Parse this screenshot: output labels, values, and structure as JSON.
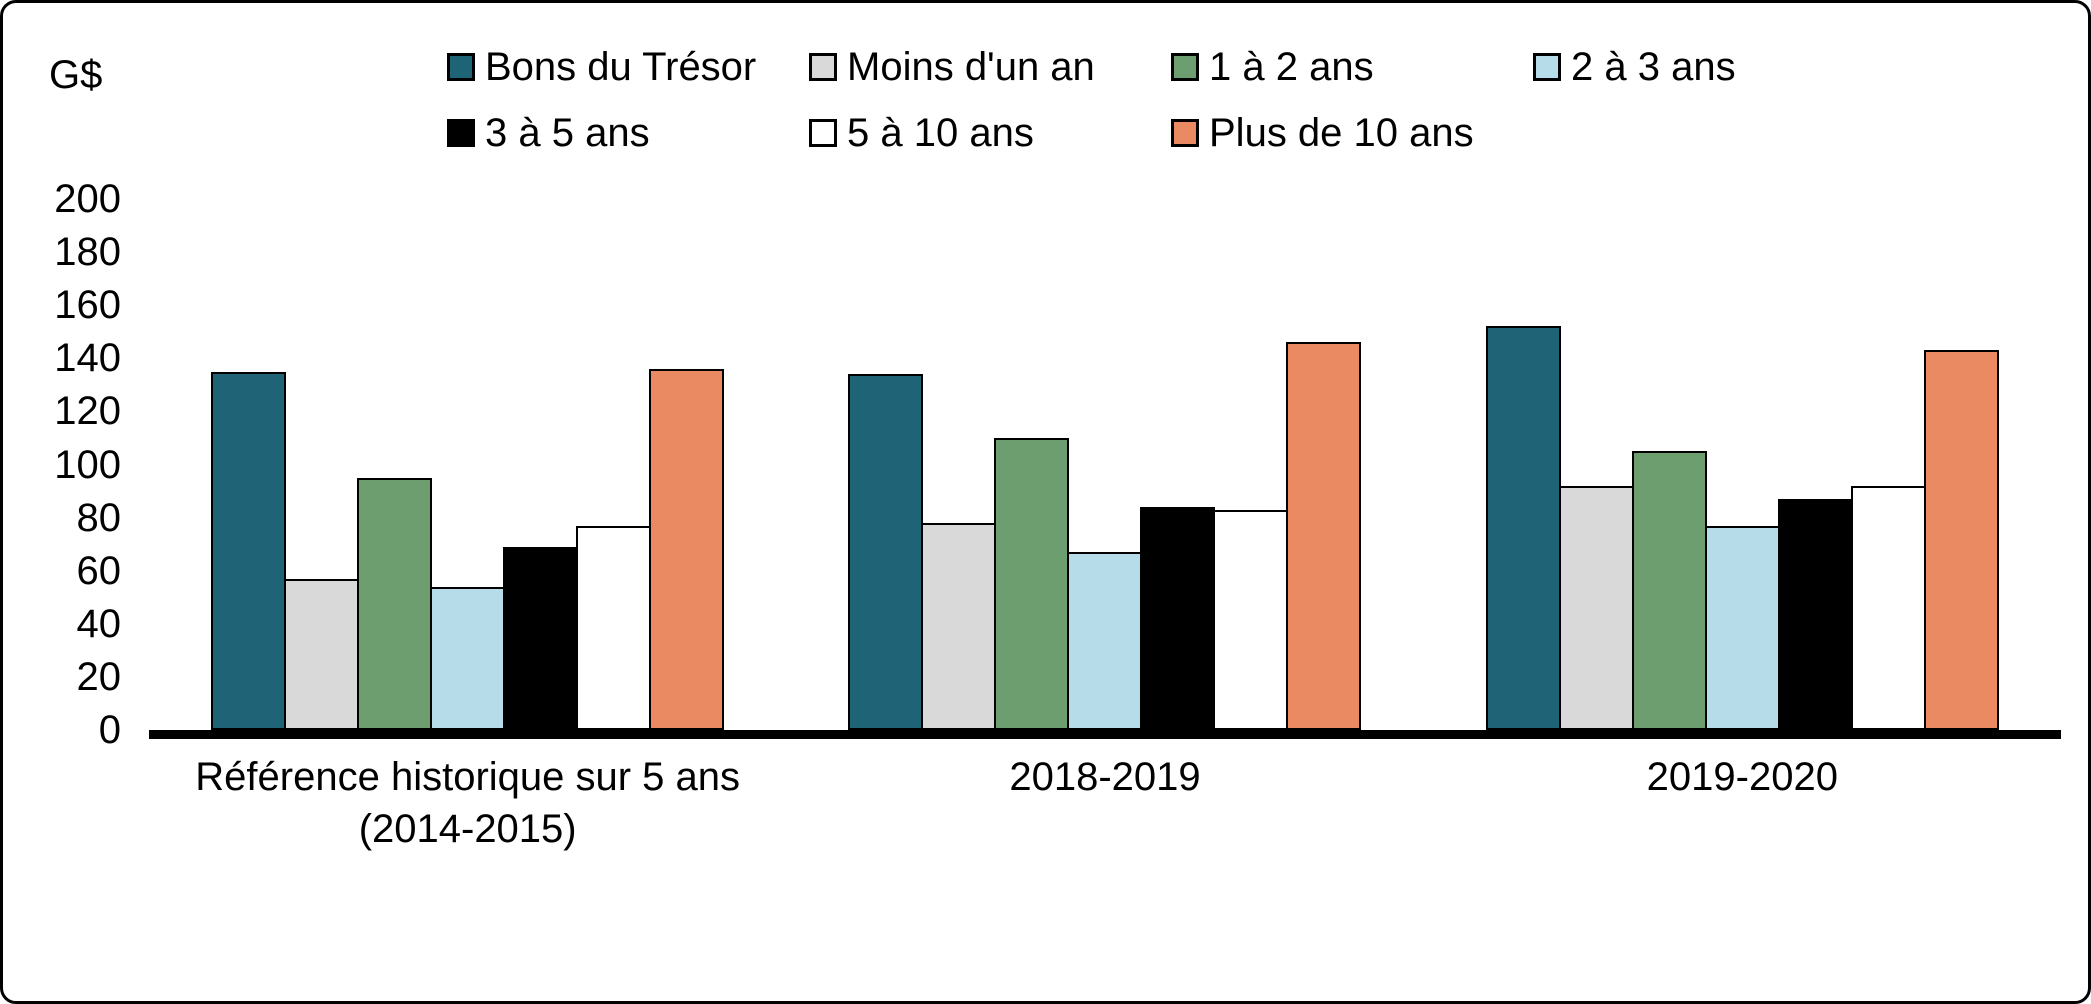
{
  "chart_data": {
    "type": "bar",
    "title": "",
    "unit_label": "G$",
    "ylim": [
      0,
      200
    ],
    "ytick_step": 20,
    "grid": false,
    "legend_position": "top",
    "categories": [
      "Référence historique sur 5 ans (2014-2015)",
      "2018-2019",
      "2019-2020"
    ],
    "category_label_lines": [
      [
        "Référence historique sur 5 ans",
        "(2014-2015)"
      ],
      [
        "2018-2019"
      ],
      [
        "2019-2020"
      ]
    ],
    "series": [
      {
        "name": "Bons du Trésor",
        "color": "#1F6377",
        "values": [
          135,
          134,
          152
        ]
      },
      {
        "name": "Moins d'un an",
        "color": "#D9D9D9",
        "values": [
          57,
          78,
          92
        ]
      },
      {
        "name": "1 à 2 ans",
        "color": "#6D9E70",
        "values": [
          95,
          110,
          105
        ]
      },
      {
        "name": "2 à 3 ans",
        "color": "#B7DCE9",
        "values": [
          54,
          67,
          77
        ]
      },
      {
        "name": "3 à 5 ans",
        "color": "#000000",
        "values": [
          69,
          84,
          87
        ]
      },
      {
        "name": "5 à 10 ans",
        "color": "#FFFFFF",
        "values": [
          77,
          83,
          92
        ]
      },
      {
        "name": "Plus de 10 ans",
        "color": "#EA8A62",
        "values": [
          136,
          146,
          143
        ]
      }
    ]
  }
}
